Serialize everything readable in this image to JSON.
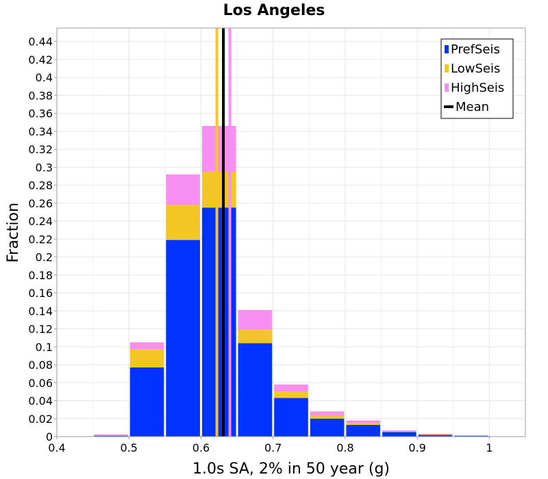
{
  "chart_data": {
    "type": "bar",
    "stacked": true,
    "title": "Los Angeles",
    "xlabel": "1.0s SA, 2% in 50 year (g)",
    "ylabel": "Fraction",
    "xlim": [
      0.4,
      1.05
    ],
    "ylim": [
      0,
      0.455
    ],
    "x_ticks": [
      0.4,
      0.5,
      0.6,
      0.7,
      0.8,
      0.9,
      1
    ],
    "x_tick_labels": [
      "0.4",
      "0.5",
      "0.6",
      "0.7",
      "0.8",
      "0.9",
      "1"
    ],
    "y_ticks": [
      0,
      0.02,
      0.04,
      0.06,
      0.08,
      0.1,
      0.12,
      0.14,
      0.16,
      0.18,
      0.2,
      0.22,
      0.24,
      0.26,
      0.28,
      0.3,
      0.32,
      0.34,
      0.36,
      0.38,
      0.4,
      0.42,
      0.44
    ],
    "y_tick_labels": [
      "0",
      "0.02",
      "0.04",
      "0.06",
      "0.08",
      "0.1",
      "0.12",
      "0.14",
      "0.16",
      "0.18",
      "0.2",
      "0.22",
      "0.24",
      "0.26",
      "0.28",
      "0.3",
      "0.32",
      "0.34",
      "0.36",
      "0.38",
      "0.4",
      "0.42",
      "0.44"
    ],
    "grid": true,
    "bin_width": 0.05,
    "bin_centers": [
      0.475,
      0.525,
      0.575,
      0.625,
      0.675,
      0.725,
      0.775,
      0.825,
      0.875,
      0.925,
      0.975
    ],
    "series": [
      {
        "name": "PrefSeis",
        "color": "#0033ff",
        "values": [
          0.001,
          0.077,
          0.219,
          0.255,
          0.104,
          0.043,
          0.02,
          0.013,
          0.005,
          0.002,
          0.001
        ]
      },
      {
        "name": "LowSeis",
        "color": "#f2c623",
        "values": [
          0.001,
          0.02,
          0.039,
          0.04,
          0.015,
          0.007,
          0.004,
          0.002,
          0.001,
          0.0005,
          0.0
        ]
      },
      {
        "name": "HighSeis",
        "color": "#f78ff2",
        "values": [
          0.0005,
          0.008,
          0.034,
          0.051,
          0.022,
          0.008,
          0.004,
          0.003,
          0.001,
          0.0005,
          0.0
        ]
      }
    ],
    "mean_lines": [
      {
        "series": "LowSeis",
        "x": 0.622,
        "color": "#f2c623"
      },
      {
        "series": "HighSeis",
        "x": 0.64,
        "color": "#f78ff2"
      },
      {
        "series": "Mean",
        "x": 0.631,
        "color": "#000000"
      }
    ],
    "legend": {
      "position": "top-right",
      "entries": [
        {
          "label": "PrefSeis",
          "color": "#0033ff"
        },
        {
          "label": "LowSeis",
          "color": "#f2c623"
        },
        {
          "label": "HighSeis",
          "color": "#f78ff2"
        },
        {
          "label": "Mean",
          "color": "#000000"
        }
      ]
    }
  }
}
